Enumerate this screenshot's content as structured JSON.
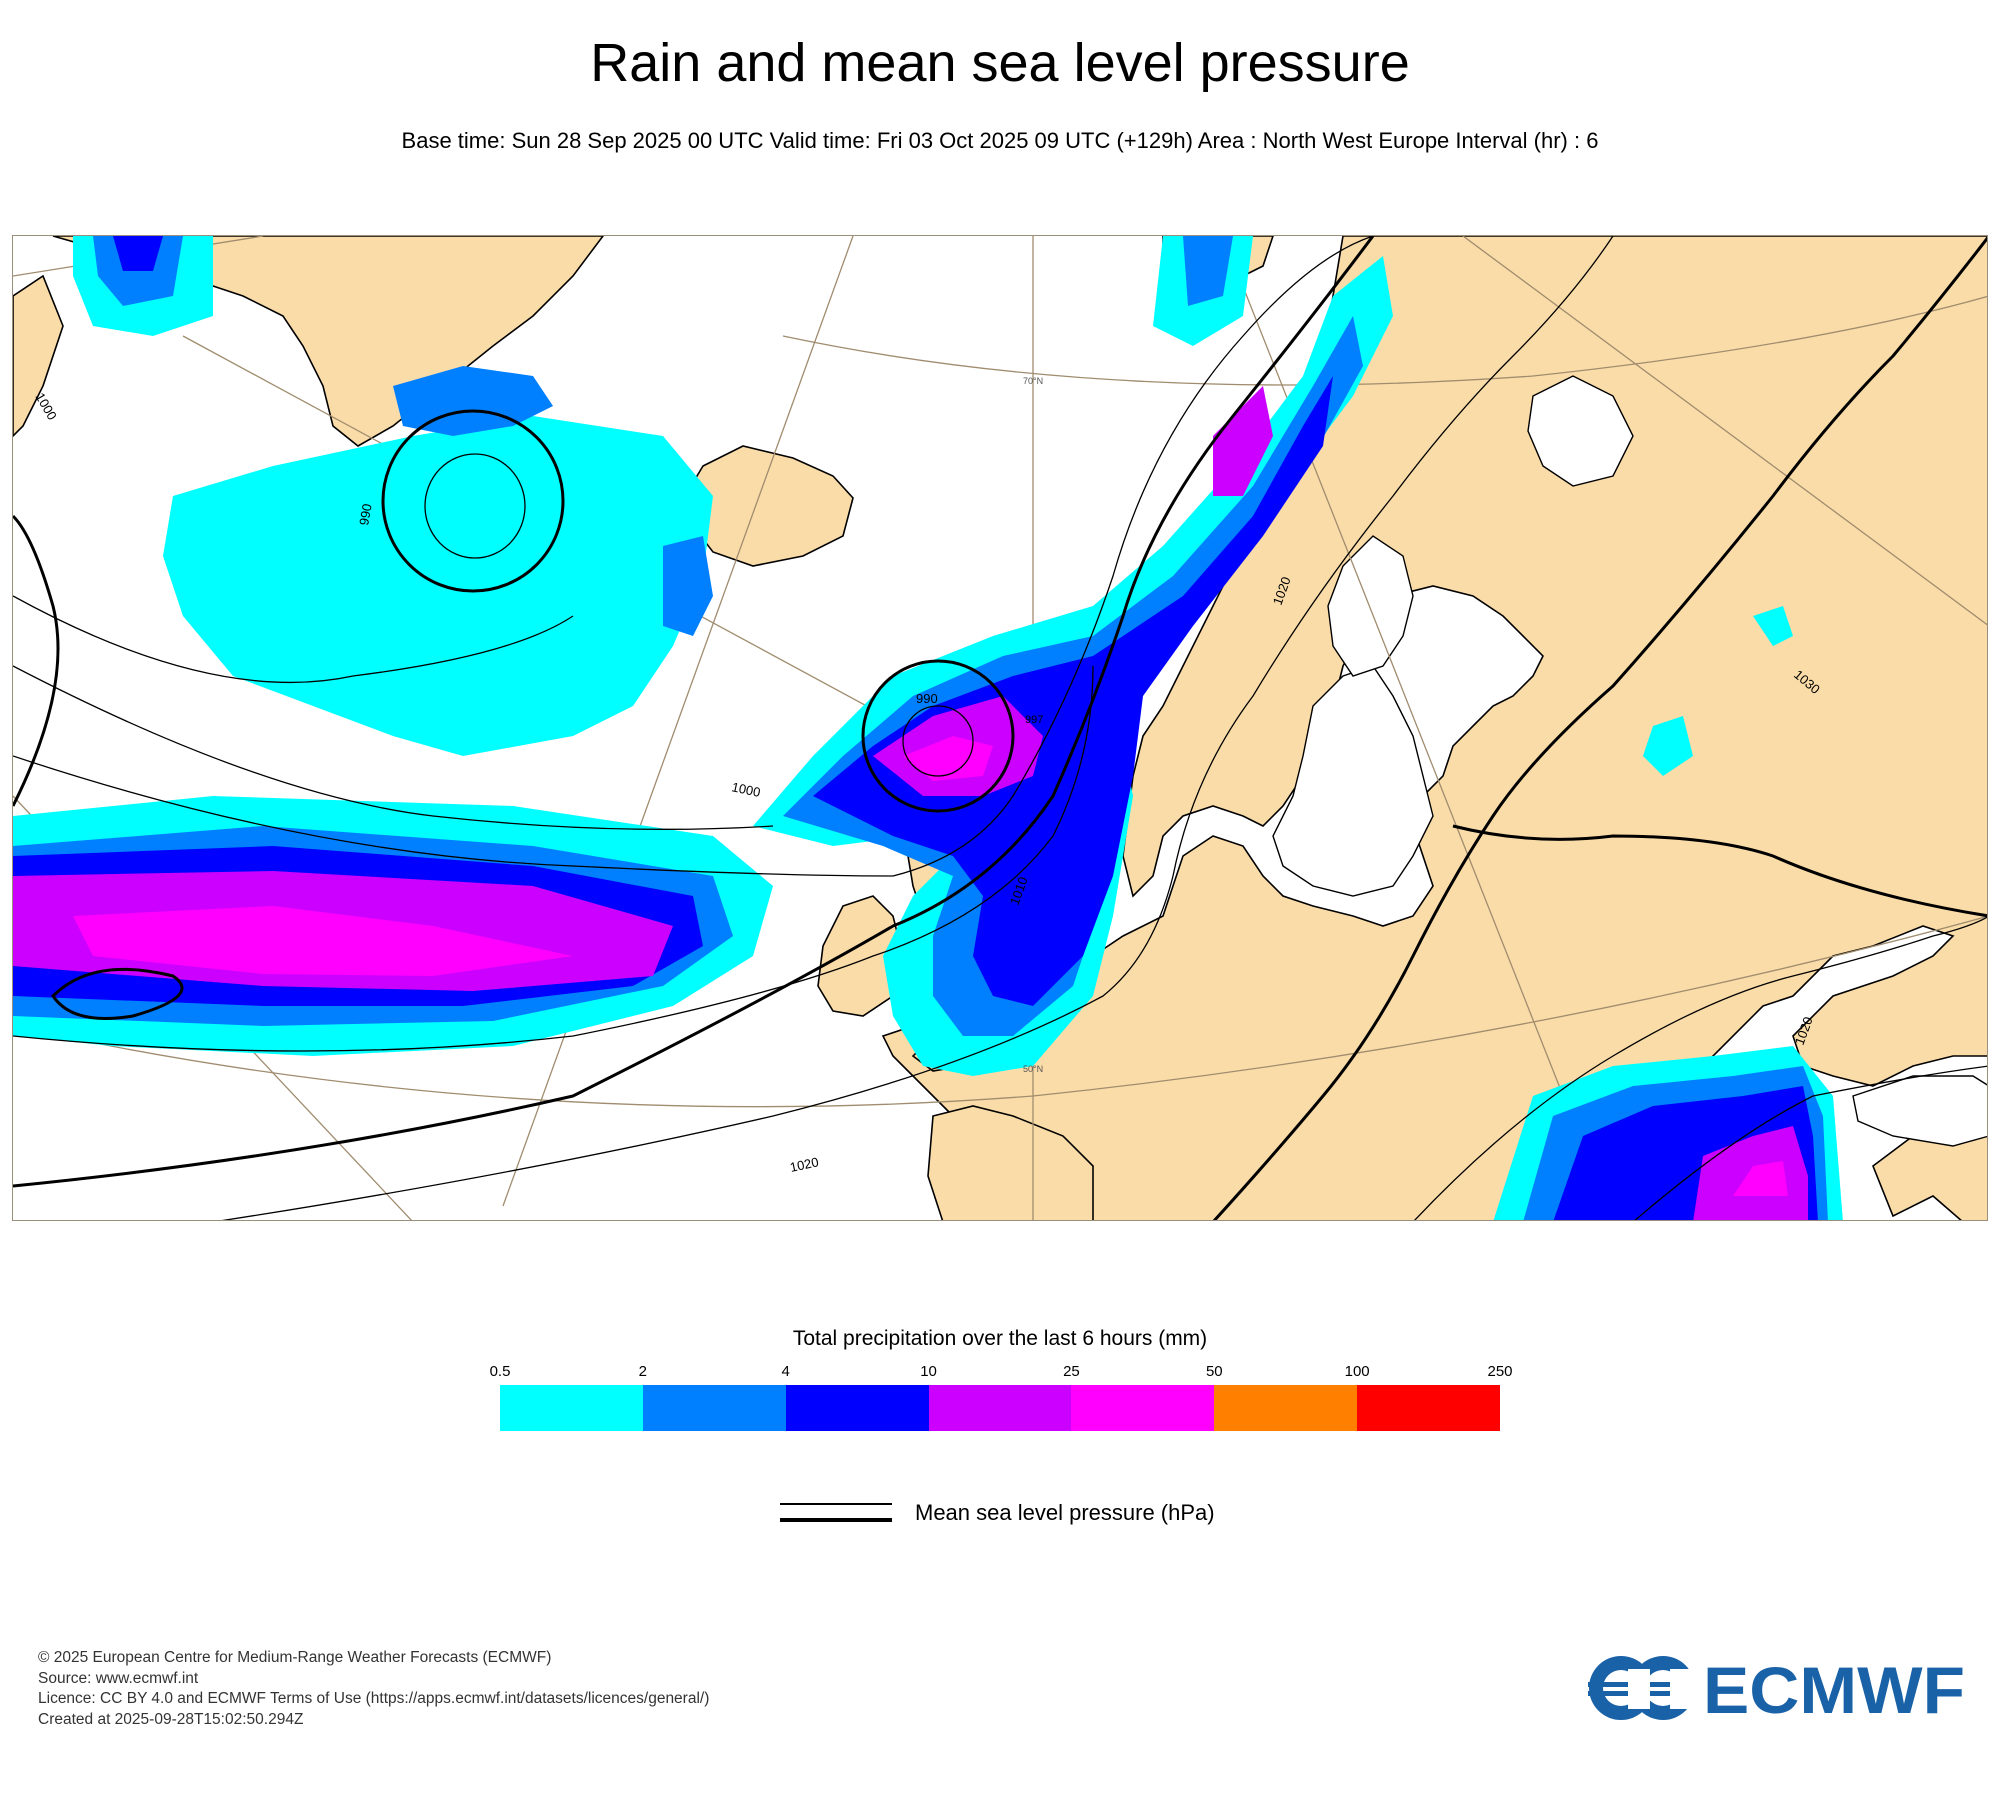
{
  "header": {
    "title": "Rain and mean sea level pressure",
    "subtitle": "Base time: Sun 28 Sep 2025 00 UTC Valid time: Fri 03 Oct 2025 09 UTC (+129h) Area : North West Europe Interval (hr) : 6"
  },
  "map": {
    "area": "North West Europe",
    "land_color": "#fadca8",
    "sea_color": "#ffffff",
    "graticule_labels": {
      "lat70": "70°N",
      "lat50": "50°N"
    },
    "isobar_labels": {
      "p1000_w": "1000",
      "p990_w": "990",
      "p1000_c": "1000",
      "p990_low": "990",
      "p1010_c": "1010",
      "p1020_s": "1020",
      "p1020_scand": "1020",
      "p1030_e": "1030",
      "p1020_se": "1020",
      "p997": "997"
    }
  },
  "legend": {
    "title": "Total precipitation over the last 6 hours (mm)",
    "ticks": [
      "0.5",
      "2",
      "4",
      "10",
      "25",
      "50",
      "100",
      "250"
    ],
    "colors": [
      "#00ffff",
      "#0080ff",
      "#0000ff",
      "#cc00ff",
      "#ff00ff",
      "#ff8000",
      "#ff0000"
    ],
    "isobar_label": "Mean sea level pressure (hPa)"
  },
  "footer": {
    "line1": "© 2025 European Centre for Medium-Range Weather Forecasts (ECMWF)",
    "line2": "Source: www.ecmwf.int",
    "line3": "Licence: CC BY 4.0 and ECMWF Terms of Use (https://apps.ecmwf.int/datasets/licences/general/)",
    "line4": "Created at 2025-09-28T15:02:50.294Z",
    "logo_text": "ECMWF",
    "logo_color": "#1a62a8"
  }
}
